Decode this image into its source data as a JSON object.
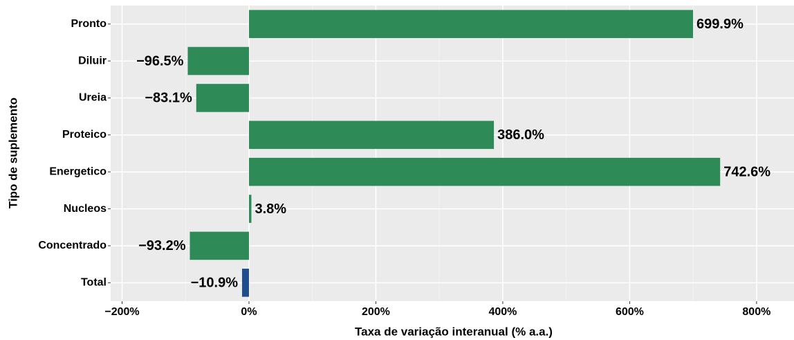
{
  "chart_data": {
    "type": "bar",
    "orientation": "horizontal",
    "x_label": "Taxa de variação interanual (% a.a.)",
    "y_label": "Tipo de suplemento",
    "categories": [
      "Pronto",
      "Diluir",
      "Ureia",
      "Proteico",
      "Energetico",
      "Nucleos",
      "Concentrado",
      "Total"
    ],
    "values": [
      699.9,
      -96.5,
      -83.1,
      386.0,
      742.6,
      3.8,
      -93.2,
      -10.9
    ],
    "value_labels": [
      "699.9%",
      "−96.5%",
      "−83.1%",
      "386.0%",
      "742.6%",
      "3.8%",
      "−93.2%",
      "−10.9%"
    ],
    "colors": [
      "#2e8b57",
      "#2e8b57",
      "#2e8b57",
      "#2e8b57",
      "#2e8b57",
      "#2e8b57",
      "#2e8b57",
      "#1f4e8c"
    ],
    "xlim": [
      -218,
      859
    ],
    "xticks": [
      {
        "value": -200,
        "label": "−200%"
      },
      {
        "value": 0,
        "label": "0%"
      },
      {
        "value": 200,
        "label": "200%"
      },
      {
        "value": 400,
        "label": "400%"
      },
      {
        "value": 600,
        "label": "600%"
      },
      {
        "value": 800,
        "label": "800%"
      }
    ],
    "grid": true
  }
}
